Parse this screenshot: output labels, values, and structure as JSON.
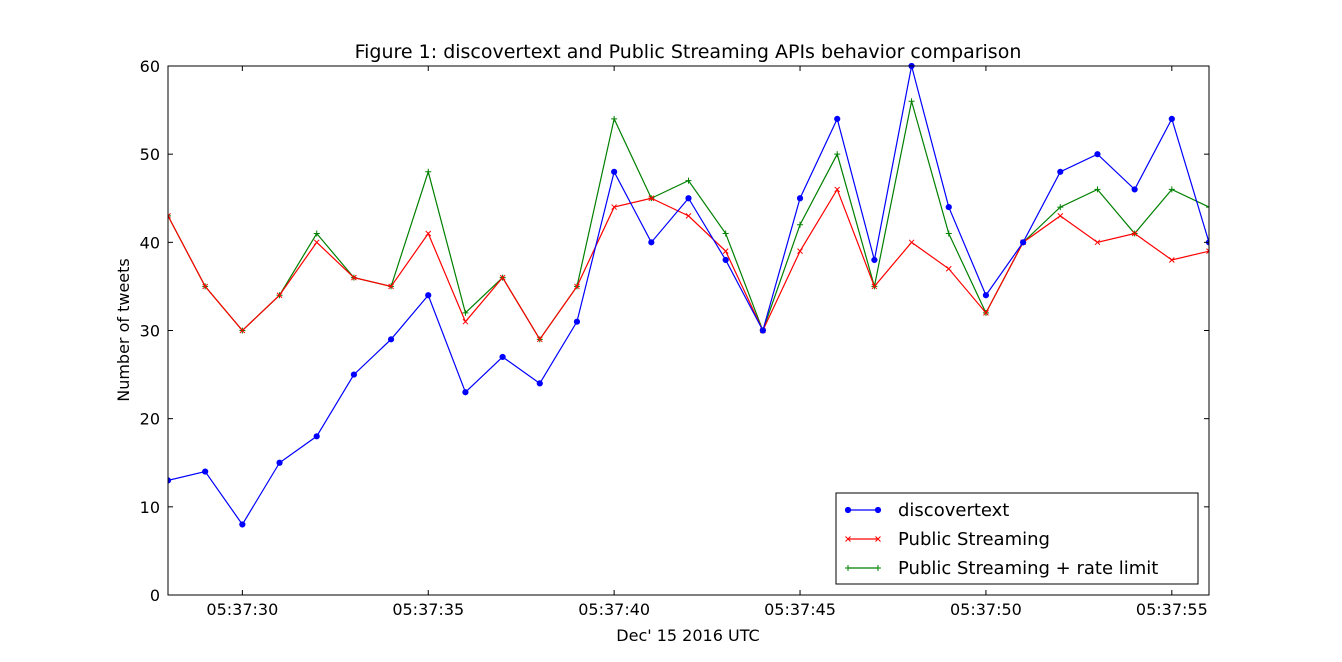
{
  "chart_data": {
    "type": "line",
    "title": "Figure 1: discovertext and Public Streaming APIs behavior comparison",
    "xlabel": "Dec' 15 2016 UTC",
    "ylabel": "Number of tweets",
    "x_range": [
      28,
      56
    ],
    "ylim": [
      0,
      60
    ],
    "x_ticks": [
      {
        "value": 30,
        "label": "05:37:30"
      },
      {
        "value": 35,
        "label": "05:37:35"
      },
      {
        "value": 40,
        "label": "05:37:40"
      },
      {
        "value": 45,
        "label": "05:37:45"
      },
      {
        "value": 50,
        "label": "05:37:50"
      },
      {
        "value": 55,
        "label": "05:37:55"
      }
    ],
    "y_ticks": [
      0,
      10,
      20,
      30,
      40,
      50,
      60
    ],
    "grid": false,
    "legend_position": "lower-right",
    "x": [
      28,
      29,
      30,
      31,
      32,
      33,
      34,
      35,
      36,
      37,
      38,
      39,
      40,
      41,
      42,
      43,
      44,
      45,
      46,
      47,
      48,
      49,
      50,
      51,
      52,
      53,
      54,
      55,
      56
    ],
    "series": [
      {
        "name": "discovertext",
        "color": "#0000ff",
        "marker": "dot",
        "values": [
          13,
          14,
          8,
          15,
          18,
          25,
          29,
          34,
          23,
          27,
          24,
          31,
          48,
          40,
          45,
          38,
          30,
          45,
          54,
          38,
          60,
          44,
          34,
          40,
          48,
          50,
          46,
          54,
          40
        ]
      },
      {
        "name": "Public Streaming",
        "color": "#ff0000",
        "marker": "x",
        "values": [
          43,
          35,
          30,
          34,
          40,
          36,
          35,
          41,
          31,
          36,
          29,
          35,
          44,
          45,
          43,
          39,
          30,
          39,
          46,
          35,
          40,
          37,
          32,
          40,
          43,
          40,
          41,
          38,
          39
        ]
      },
      {
        "name": "Public Streaming + rate limit",
        "color": "#008000",
        "marker": "plus",
        "values": [
          43,
          35,
          30,
          34,
          41,
          36,
          35,
          48,
          32,
          36,
          29,
          35,
          54,
          45,
          47,
          41,
          30,
          42,
          50,
          35,
          56,
          41,
          32,
          40,
          44,
          46,
          41,
          46,
          44
        ]
      }
    ]
  }
}
